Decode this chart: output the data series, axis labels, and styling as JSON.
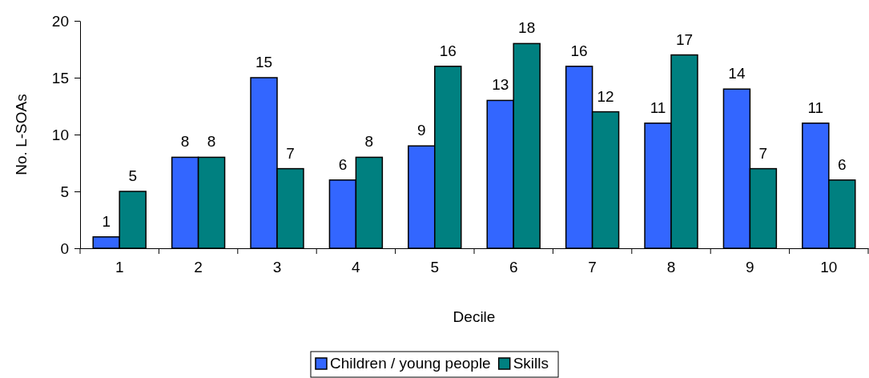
{
  "chart_data": {
    "type": "bar",
    "xlabel": "Decile",
    "ylabel": "No. L-SOAs",
    "categories": [
      "1",
      "2",
      "3",
      "4",
      "5",
      "6",
      "7",
      "8",
      "9",
      "10"
    ],
    "series": [
      {
        "name": "Children / young people",
        "color": "#3366ff",
        "values": [
          1,
          8,
          15,
          6,
          9,
          13,
          16,
          11,
          14,
          11
        ]
      },
      {
        "name": "Skills",
        "color": "#008080",
        "values": [
          5,
          8,
          7,
          8,
          16,
          18,
          12,
          17,
          7,
          6
        ]
      }
    ],
    "ylim": [
      0,
      20
    ],
    "yticks": [
      0,
      5,
      10,
      15,
      20
    ],
    "data_labels": true,
    "legend": "bottom",
    "grid": false
  }
}
